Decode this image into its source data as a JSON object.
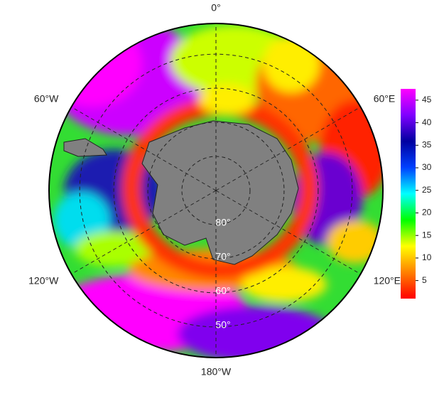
{
  "map": {
    "projection": "south-polar-stereographic",
    "latlim": [
      -90,
      -41
    ],
    "lonticks": [
      {
        "value": 0,
        "label": "0°"
      },
      {
        "value": 60,
        "label": "60°E"
      },
      {
        "value": 120,
        "label": "120°E"
      },
      {
        "value": 180,
        "label": "180°W"
      },
      {
        "value": 240,
        "label": "120°W"
      },
      {
        "value": 300,
        "label": "60°W"
      }
    ],
    "latticks": [
      {
        "value": -80,
        "label": "80°"
      },
      {
        "value": -70,
        "label": "70°"
      },
      {
        "value": -60,
        "label": "60°"
      },
      {
        "value": -50,
        "label": "50°"
      }
    ],
    "colorbar": {
      "clim": [
        1,
        47.5
      ],
      "ticks": [
        5,
        10,
        15,
        20,
        25,
        30,
        35,
        40,
        45
      ],
      "colormap": [
        "#ff0000",
        "#ff8000",
        "#ffff00",
        "#00ff00",
        "#00ffff",
        "#0040ff",
        "#0000a0",
        "#8000ff",
        "#ff00ff"
      ]
    }
  }
}
